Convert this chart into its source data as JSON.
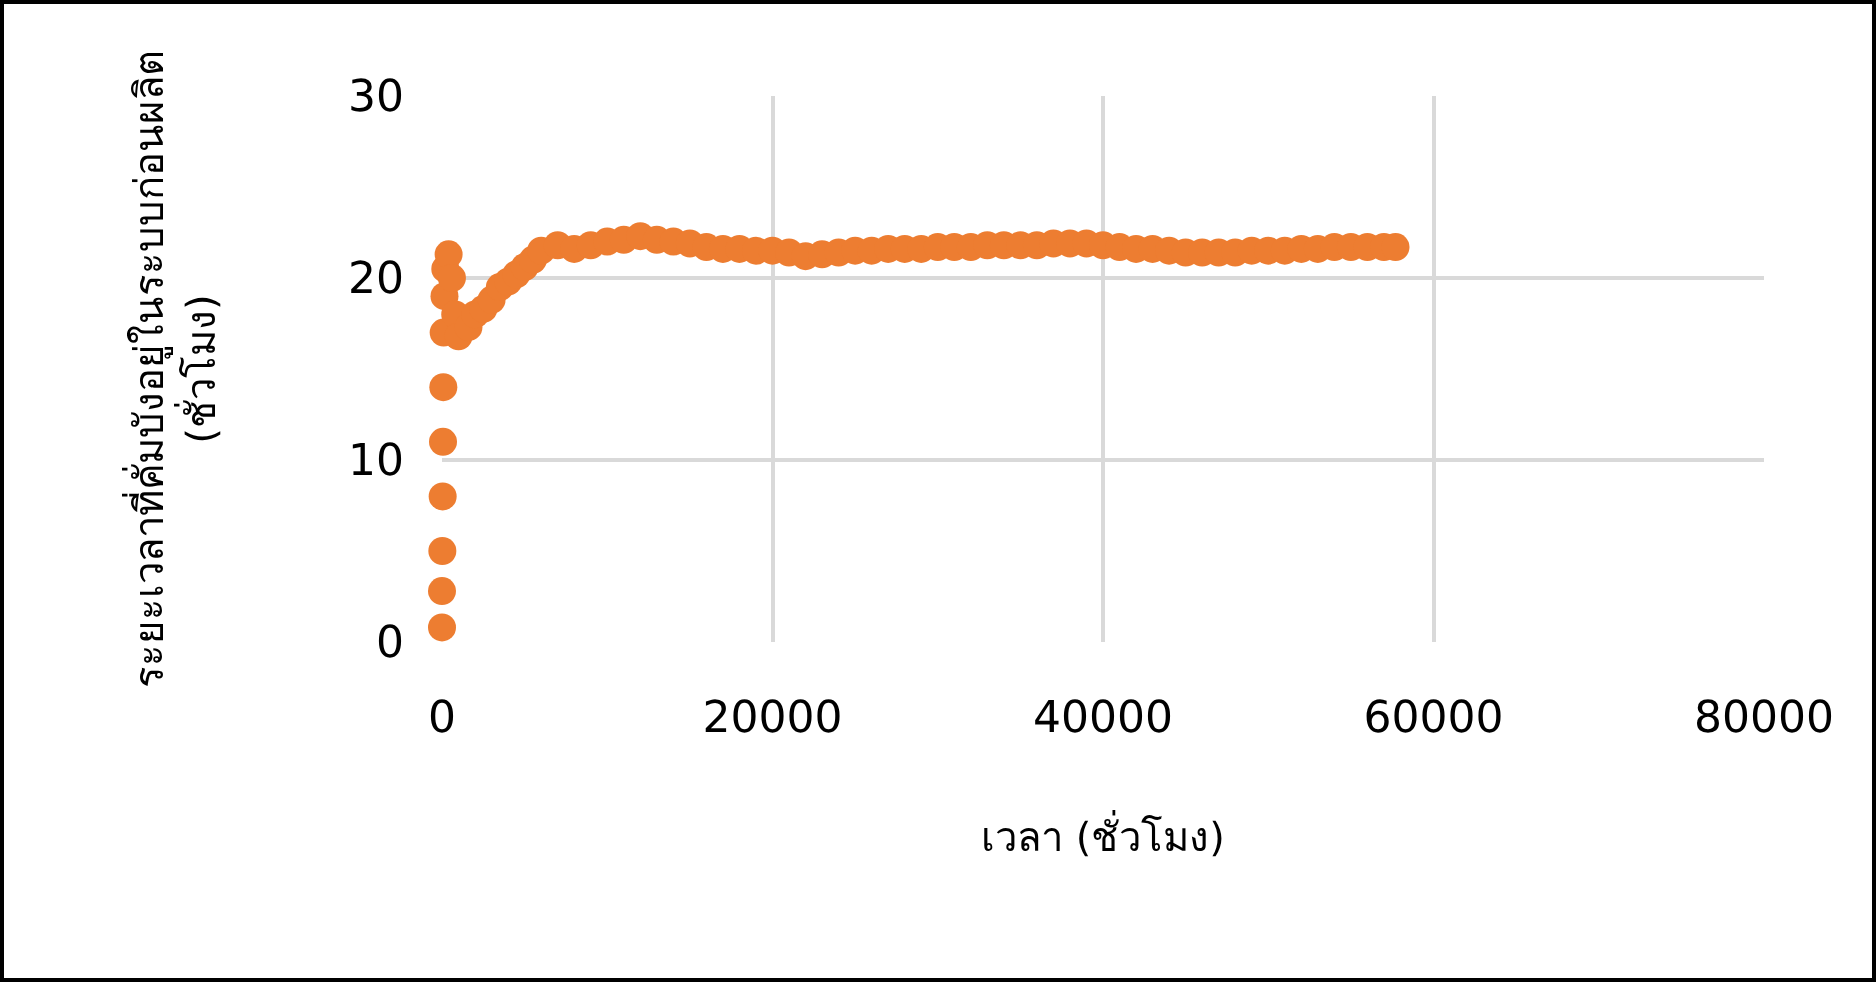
{
  "chart_data": {
    "type": "scatter",
    "xlabel": "เวลา (ชั่วโมง)",
    "ylabel": "ระยะเวลาที่คั่มบังอยู่ในระบบก่อนผลิต\n(ชั่วโมง)",
    "x": [
      0,
      0,
      20,
      40,
      60,
      80,
      100,
      150,
      200,
      400,
      600,
      800,
      1000,
      1600,
      2000,
      2500,
      3000,
      3500,
      4000,
      4500,
      5000,
      5500,
      6000,
      7000,
      8000,
      9000,
      10000,
      11000,
      12000,
      13000,
      14000,
      15000,
      16000,
      17000,
      18000,
      19000,
      20000,
      21000,
      22000,
      23000,
      24000,
      25000,
      26000,
      27000,
      28000,
      29000,
      30000,
      31000,
      32000,
      33000,
      34000,
      35000,
      36000,
      37000,
      38000,
      39000,
      40000,
      41000,
      42000,
      43000,
      44000,
      45000,
      46000,
      47000,
      48000,
      49000,
      50000,
      51000,
      52000,
      53000,
      54000,
      55000,
      56000,
      57000,
      57700
    ],
    "values": [
      0.8,
      2.8,
      5,
      8,
      11,
      14,
      17,
      19,
      20.5,
      21.3,
      20,
      18,
      16.8,
      17.3,
      18,
      18.3,
      18.8,
      19.5,
      19.8,
      20.2,
      20.6,
      21,
      21.5,
      21.8,
      21.6,
      21.8,
      22,
      22.1,
      22.3,
      22.1,
      22,
      21.9,
      21.7,
      21.6,
      21.6,
      21.5,
      21.5,
      21.4,
      21.2,
      21.3,
      21.4,
      21.5,
      21.5,
      21.6,
      21.6,
      21.6,
      21.7,
      21.7,
      21.7,
      21.8,
      21.8,
      21.8,
      21.8,
      21.9,
      21.9,
      21.9,
      21.8,
      21.7,
      21.6,
      21.6,
      21.5,
      21.4,
      21.4,
      21.4,
      21.4,
      21.5,
      21.5,
      21.5,
      21.6,
      21.6,
      21.7,
      21.7,
      21.7,
      21.7,
      21.7
    ],
    "color": "#ed7d31",
    "marker": "circle",
    "xlim": [
      0,
      80000
    ],
    "xticks": [
      0,
      20000,
      40000,
      60000,
      80000
    ],
    "ylim": [
      0,
      30
    ],
    "yticks": [
      0,
      10,
      20,
      30
    ],
    "grid": true
  }
}
